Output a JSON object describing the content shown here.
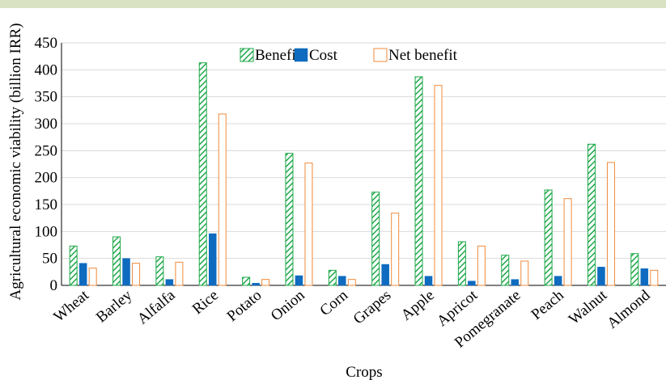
{
  "chart_data": {
    "type": "bar",
    "title": "",
    "xlabel": "Crops",
    "ylabel": "Agricultural economic viability (billion IRR)",
    "ylim": [
      0,
      450
    ],
    "yticks": [
      0,
      50,
      100,
      150,
      200,
      250,
      300,
      350,
      400,
      450
    ],
    "grid": true,
    "legend_position": "top-center",
    "categories": [
      "Wheat",
      "Barley",
      "Alfalfa",
      "Rice",
      "Potato",
      "Onion",
      "Corn",
      "Grapes",
      "Apple",
      "Apricot",
      "Pomegranate",
      "Peach",
      "Walnut",
      "Almond"
    ],
    "series": [
      {
        "name": "Benefit",
        "style": "hatched",
        "color": "#1fa84a",
        "values": [
          73,
          90,
          53,
          413,
          15,
          245,
          28,
          173,
          387,
          81,
          56,
          177,
          262,
          59
        ]
      },
      {
        "name": "Cost",
        "style": "solid",
        "color": "#0e6bbf",
        "values": [
          41,
          50,
          11,
          96,
          4,
          18,
          17,
          39,
          17,
          8,
          11,
          17,
          34,
          31
        ]
      },
      {
        "name": "Net benefit",
        "style": "outline",
        "color": "#ef8b3c",
        "values": [
          32,
          41,
          43,
          318,
          11,
          227,
          11,
          134,
          371,
          73,
          45,
          161,
          228,
          28
        ]
      }
    ]
  }
}
